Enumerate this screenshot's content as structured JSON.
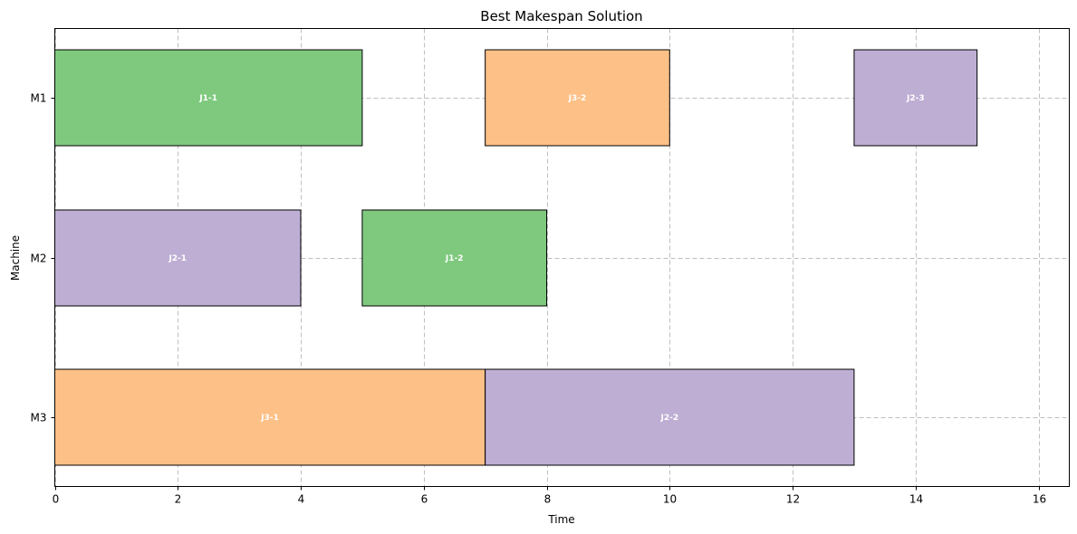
{
  "chart_data": {
    "type": "bar",
    "orientation": "horizontal",
    "title": "Best Makespan Solution",
    "xlabel": "Time",
    "ylabel": "Machine",
    "xlim": [
      0,
      16.5
    ],
    "xticks": [
      0,
      2,
      4,
      6,
      8,
      10,
      12,
      14,
      16
    ],
    "categories": [
      "M1",
      "M2",
      "M3"
    ],
    "grid": true,
    "colors": {
      "J1": "#7fc97f",
      "J2": "#beaed4",
      "J3": "#fdc086"
    },
    "tasks": [
      {
        "label": "J1-1",
        "job": "J1",
        "machine": "M1",
        "start": 0,
        "end": 5
      },
      {
        "label": "J3-2",
        "job": "J3",
        "machine": "M1",
        "start": 7,
        "end": 10
      },
      {
        "label": "J2-3",
        "job": "J2",
        "machine": "M1",
        "start": 13,
        "end": 15
      },
      {
        "label": "J2-1",
        "job": "J2",
        "machine": "M2",
        "start": 0,
        "end": 4
      },
      {
        "label": "J1-2",
        "job": "J1",
        "machine": "M2",
        "start": 5,
        "end": 8
      },
      {
        "label": "J3-1",
        "job": "J3",
        "machine": "M3",
        "start": 0,
        "end": 7
      },
      {
        "label": "J2-2",
        "job": "J2",
        "machine": "M3",
        "start": 7,
        "end": 13
      }
    ]
  }
}
